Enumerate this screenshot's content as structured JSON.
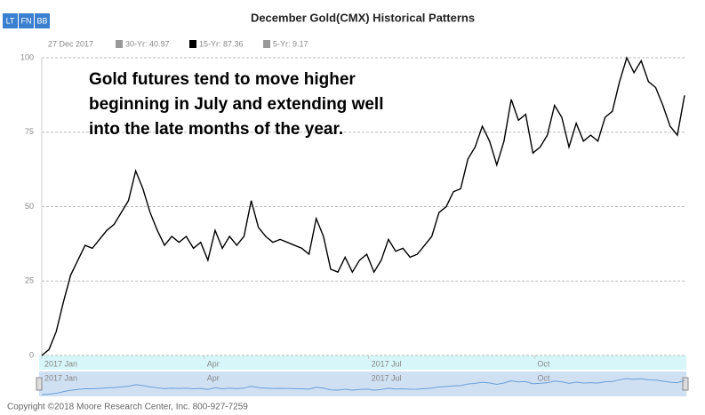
{
  "buttons": [
    "LT",
    "FN",
    "BB"
  ],
  "legend": {
    "date": "27 Dec 2017",
    "items": [
      {
        "label": "30-Yr: 40.97",
        "color": "#999999"
      },
      {
        "label": "15-Yr: 87.36",
        "color": "#000000"
      },
      {
        "label": "5-Yr: 9.17",
        "color": "#999999"
      }
    ]
  },
  "annotation": [
    "Gold futures tend to move higher",
    "beginning in July and extending well",
    "into the late months of the year."
  ],
  "footer": "Copyright ©2018 Moore Research Center, Inc. 800-927-7259",
  "chart_data": {
    "type": "line",
    "title": "December Gold(CMX) Historical Patterns",
    "x": [
      0,
      4,
      8,
      12,
      16,
      20,
      24,
      28,
      32,
      36,
      40,
      44,
      48,
      52,
      56,
      60,
      64,
      68,
      72,
      76,
      80,
      84,
      88,
      92,
      96,
      100,
      104,
      108,
      112,
      116,
      120,
      124,
      128,
      132,
      136,
      140,
      144,
      148,
      152,
      156,
      160,
      164,
      168,
      172,
      176,
      180,
      184,
      188,
      192,
      196,
      200,
      204,
      208,
      212,
      216,
      220,
      224,
      228,
      232,
      236,
      240,
      244,
      248,
      252,
      256,
      260,
      264,
      268,
      272,
      276,
      280,
      284,
      288,
      292,
      296,
      300,
      304,
      308,
      312,
      316,
      320,
      324,
      328,
      332,
      336,
      340,
      344,
      348,
      352,
      356
    ],
    "series": [
      {
        "name": "15-Yr",
        "color": "#000000",
        "values": [
          0,
          2,
          8,
          18,
          27,
          32,
          37,
          36,
          39,
          42,
          44,
          48,
          52,
          62,
          56,
          48,
          42,
          37,
          40,
          38,
          40,
          36,
          38,
          32,
          42,
          36,
          40,
          37,
          40,
          52,
          43,
          40,
          38,
          39,
          38,
          37,
          36,
          34,
          46,
          40,
          29,
          28,
          33,
          28,
          32,
          34,
          28,
          32,
          39,
          35,
          36,
          33,
          34,
          37,
          40,
          48,
          50,
          55,
          56,
          66,
          70,
          77,
          72,
          64,
          72,
          86,
          79,
          81,
          68,
          70,
          74,
          84,
          80,
          70,
          78,
          72,
          74,
          72,
          80,
          82,
          92,
          100,
          95,
          99,
          92,
          90,
          84,
          77,
          74,
          87.36
        ]
      }
    ],
    "xlim": [
      0,
      356
    ],
    "xticks": [
      {
        "value": 0,
        "label": "2017 Jan"
      },
      {
        "value": 90,
        "label": "Apr"
      },
      {
        "value": 181,
        "label": "2017 Jul"
      },
      {
        "value": 273,
        "label": "Oct"
      }
    ],
    "ylim": [
      0,
      100
    ],
    "yticks": [
      0,
      25,
      50,
      75,
      100
    ],
    "grid": true
  }
}
